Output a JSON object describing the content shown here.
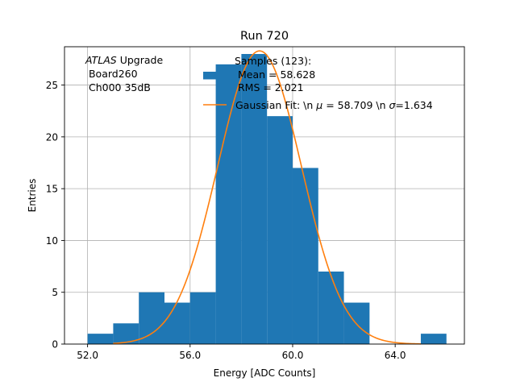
{
  "chart_data": {
    "type": "histogram",
    "title": "Run 720",
    "xlabel": "Energy [ADC Counts]",
    "ylabel": "Entries",
    "xlim": [
      51.1,
      66.7
    ],
    "ylim": [
      0,
      28.7
    ],
    "x_ticks": [
      52.0,
      56.0,
      60.0,
      64.0
    ],
    "x_tick_labels": [
      "52.0",
      "56.0",
      "60.0",
      "64.0"
    ],
    "y_ticks": [
      0,
      5,
      10,
      15,
      20,
      25
    ],
    "y_tick_labels": [
      "0",
      "5",
      "10",
      "15",
      "20",
      "25"
    ],
    "grid": true,
    "bins": [
      {
        "x0": 52,
        "x1": 53,
        "count": 1
      },
      {
        "x0": 53,
        "x1": 54,
        "count": 2
      },
      {
        "x0": 54,
        "x1": 55,
        "count": 5
      },
      {
        "x0": 55,
        "x1": 56,
        "count": 4
      },
      {
        "x0": 56,
        "x1": 57,
        "count": 5
      },
      {
        "x0": 57,
        "x1": 58,
        "count": 27
      },
      {
        "x0": 58,
        "x1": 59,
        "count": 28
      },
      {
        "x0": 59,
        "x1": 60,
        "count": 22
      },
      {
        "x0": 60,
        "x1": 61,
        "count": 17
      },
      {
        "x0": 61,
        "x1": 62,
        "count": 7
      },
      {
        "x0": 62,
        "x1": 63,
        "count": 4
      },
      {
        "x0": 65,
        "x1": 66,
        "count": 1
      }
    ],
    "gaussian_fit": {
      "mu": 58.709,
      "sigma": 1.634,
      "peak": 28.3,
      "x_range": [
        53,
        65
      ]
    },
    "colors": {
      "bars": "#1f77b4",
      "fit": "#ff7f0e",
      "grid": "#b0b0b0"
    },
    "annotation": {
      "line1_italic": "ATLAS",
      "line1_rest": " Upgrade",
      "line2": " Board260",
      "line3": " Ch000 35dB"
    },
    "legend": {
      "position": "upper-right",
      "hist_line1": "Samples (123):",
      "hist_line2": " Mean = 58.628",
      "hist_line3": " RMS = 2.021",
      "fit_label_a": "Gaussian Fit: \\n ",
      "fit_mu": "μ",
      "fit_label_b": " = 58.709 \\n ",
      "fit_sigma": "σ",
      "fit_label_c": "=1.634"
    }
  }
}
